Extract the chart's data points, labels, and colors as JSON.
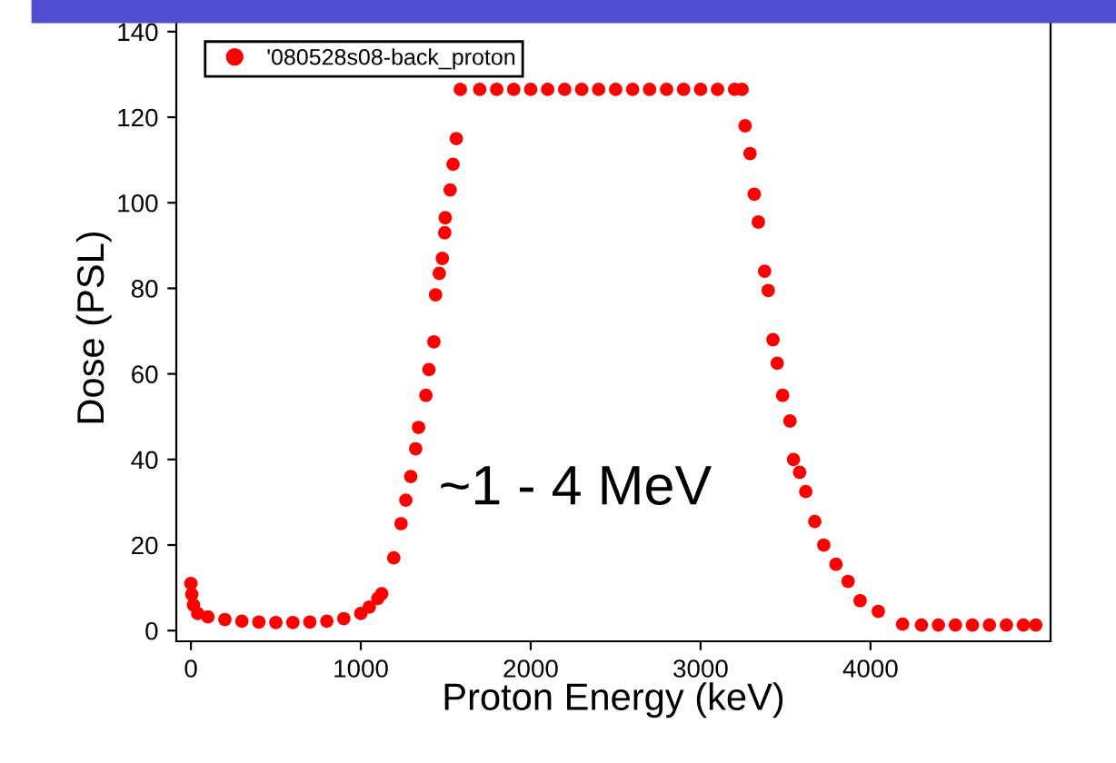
{
  "chart_data": {
    "type": "scatter",
    "xlabel": "Proton Energy (keV)",
    "ylabel": "Dose (PSL)",
    "annotations": [
      "~1 - 4 MeV"
    ],
    "xlim": [
      -86,
      5060
    ],
    "ylim": [
      -2.5,
      144
    ],
    "xticks": [
      0,
      1000,
      2000,
      3000,
      4000
    ],
    "yticks": [
      0,
      20,
      40,
      60,
      80,
      100,
      120,
      140
    ],
    "grid": false,
    "legend": "top left",
    "marker": "circle",
    "series": [
      {
        "name": "'080528s08-back_proton",
        "color": "#ff0000",
        "x": [
          0,
          5,
          15,
          40,
          100,
          200,
          300,
          400,
          500,
          600,
          700,
          800,
          900,
          1000,
          1050,
          1100,
          1123,
          1194,
          1237,
          1265,
          1294,
          1323,
          1340,
          1383,
          1401,
          1430,
          1440,
          1462,
          1480,
          1494,
          1497,
          1526,
          1543,
          1562,
          1586,
          1700,
          1800,
          1900,
          2000,
          2100,
          2200,
          2300,
          2400,
          2500,
          2600,
          2700,
          2800,
          2900,
          3000,
          3100,
          3200,
          3244,
          3262,
          3291,
          3316,
          3340,
          3377,
          3398,
          3426,
          3451,
          3483,
          3526,
          3547,
          3583,
          3619,
          3672,
          3725,
          3797,
          3868,
          3939,
          4046,
          4189,
          4300,
          4400,
          4500,
          4600,
          4700,
          4800,
          4900,
          4973
        ],
        "values": [
          11,
          8.5,
          6,
          4,
          3.2,
          2.6,
          2.2,
          2,
          1.9,
          1.9,
          2,
          2.2,
          2.8,
          4,
          5.5,
          7.5,
          8.6,
          17,
          25,
          30.5,
          36,
          42.5,
          47.5,
          55,
          61,
          67.5,
          78.5,
          83.5,
          87,
          93,
          96.5,
          103,
          109,
          115,
          126.5,
          126.5,
          126.5,
          126.5,
          126.5,
          126.5,
          126.5,
          126.5,
          126.5,
          126.5,
          126.5,
          126.5,
          126.5,
          126.5,
          126.5,
          126.5,
          126.5,
          126.5,
          118,
          111.5,
          102,
          95.5,
          84,
          79.5,
          68,
          62.5,
          55,
          49,
          40,
          37,
          32.5,
          25.5,
          20,
          15.5,
          11.5,
          7,
          4.5,
          1.5,
          1.3,
          1.3,
          1.3,
          1.3,
          1.3,
          1.3,
          1.3,
          1.3
        ]
      }
    ]
  }
}
